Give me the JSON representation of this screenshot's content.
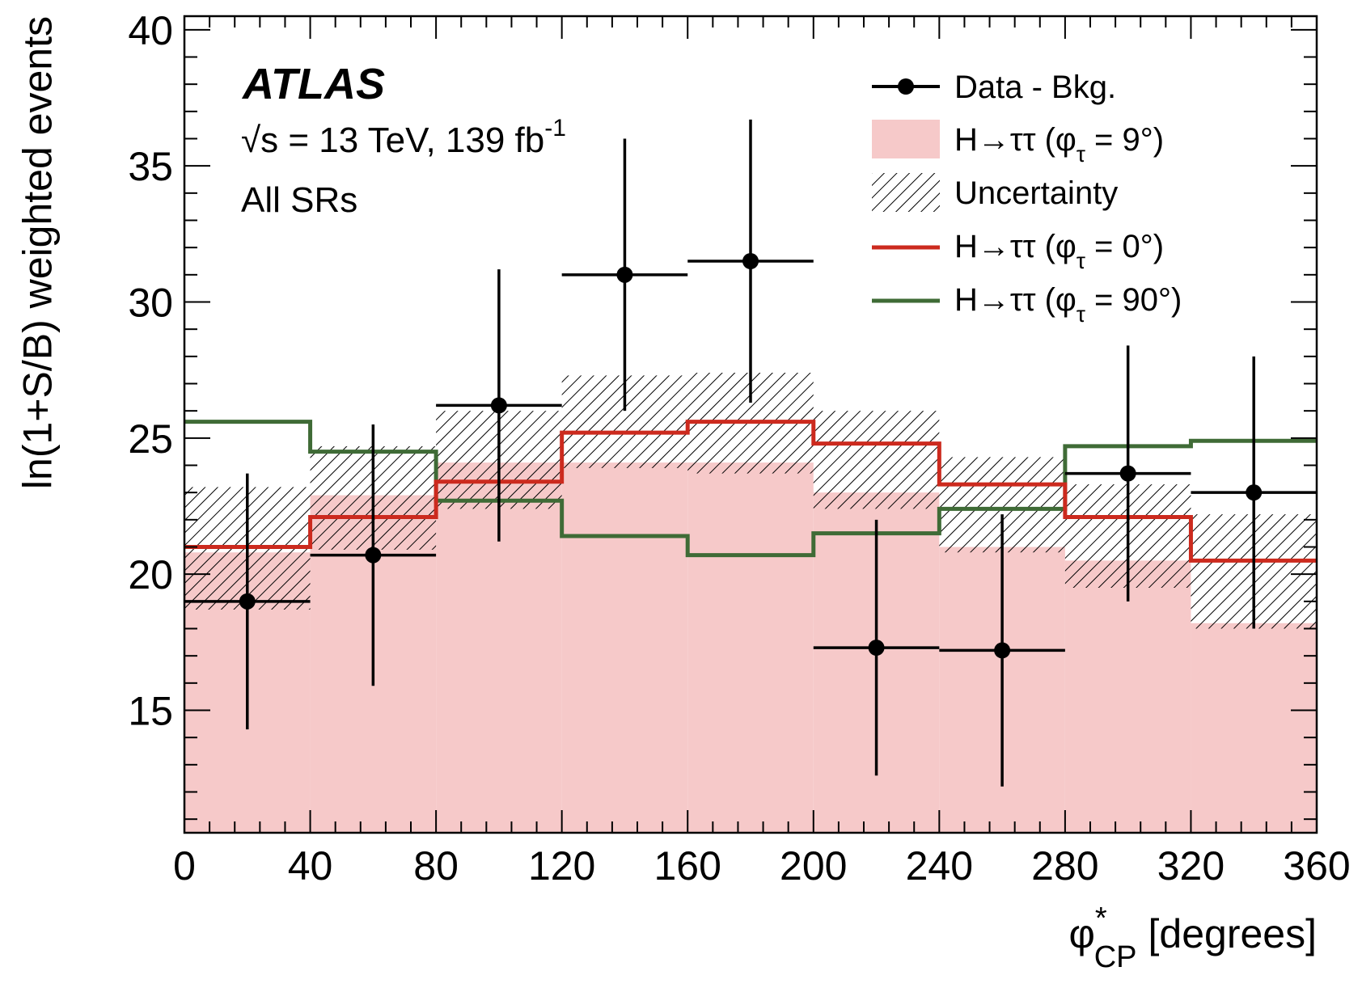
{
  "chart_data": {
    "type": "histogram",
    "xlabel": "[degrees]",
    "xlabel_symbol": "φ",
    "xlabel_superscript": "*",
    "xlabel_subscript": "CP",
    "ylabel": "ln(1+S/B) weighted events",
    "xlim": [
      0,
      360
    ],
    "ylim": [
      10.5,
      40.5
    ],
    "x_ticks": [
      0,
      40,
      80,
      120,
      160,
      200,
      240,
      280,
      320,
      360
    ],
    "x_tick_labels": [
      "0",
      "40",
      "80",
      "120",
      "160",
      "200",
      "240",
      "280",
      "320",
      "360"
    ],
    "y_ticks": [
      15,
      20,
      25,
      30,
      35,
      40
    ],
    "y_tick_labels": [
      "15",
      "20",
      "25",
      "30",
      "35",
      "40"
    ],
    "bin_edges": [
      0,
      40,
      80,
      120,
      160,
      200,
      240,
      280,
      320,
      360
    ],
    "experiment": "ATLAS",
    "energy_text": "√s = 13 TeV, 139 fb",
    "energy_superscript": "-1",
    "region_text": "All SRs",
    "series": [
      {
        "name": "Data - Bkg.",
        "kind": "points",
        "color": "#000000",
        "x": [
          20,
          60,
          100,
          140,
          180,
          220,
          260,
          300,
          340
        ],
        "y": [
          19.0,
          20.7,
          26.2,
          31.0,
          31.5,
          17.3,
          17.2,
          23.7,
          23.0
        ],
        "yerr": [
          4.7,
          4.8,
          5.0,
          5.0,
          5.2,
          4.7,
          5.0,
          4.7,
          5.0
        ]
      },
      {
        "name": "H→ττ (φτ = 9°)",
        "legend_main": "H→ττ (φ",
        "legend_sub": "τ",
        "legend_tail": " = 9°)",
        "kind": "filled-histogram",
        "color": "#f6c9c9",
        "values": [
          20.8,
          22.9,
          24.1,
          24.1,
          24.1,
          23.0,
          21.0,
          20.5,
          18.2
        ]
      },
      {
        "name": "Uncertainty",
        "kind": "hatched-band",
        "color": "#000000",
        "lower": [
          18.7,
          20.9,
          22.4,
          23.9,
          23.7,
          22.4,
          20.8,
          19.5,
          18.0
        ],
        "upper": [
          23.2,
          24.7,
          26.0,
          27.3,
          27.4,
          26.0,
          24.3,
          23.3,
          22.2
        ]
      },
      {
        "name": "H→ττ (φτ = 0°)",
        "legend_main": "H→ττ (φ",
        "legend_sub": "τ",
        "legend_tail": " = 0°)",
        "kind": "step",
        "color": "#cc2a1e",
        "values": [
          21.0,
          22.1,
          23.4,
          25.2,
          25.6,
          24.8,
          23.3,
          22.1,
          20.5
        ]
      },
      {
        "name": "H→ττ (φτ = 90°)",
        "legend_main": "H→ττ (φ",
        "legend_sub": "τ",
        "legend_tail": " = 90°)",
        "kind": "step",
        "color": "#3f6b36",
        "values": [
          25.6,
          24.5,
          22.7,
          21.4,
          20.7,
          21.5,
          22.4,
          24.7,
          24.9
        ]
      }
    ],
    "legend_position": "top-right",
    "grid": false
  }
}
